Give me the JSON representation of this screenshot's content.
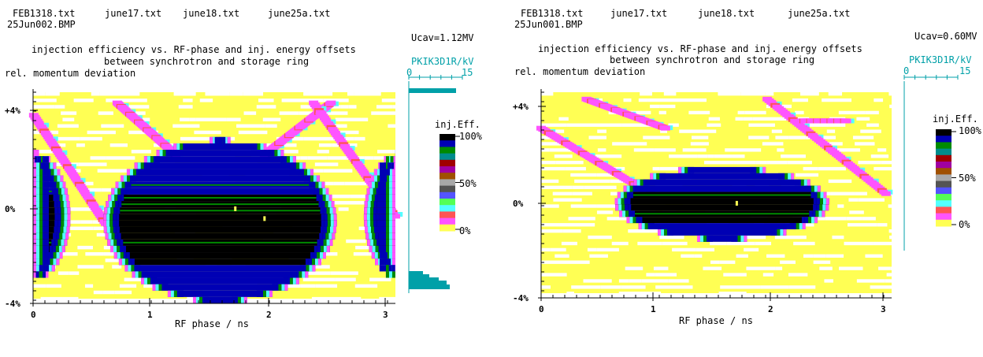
{
  "panels": [
    {
      "files": [
        "FEB1318.txt",
        "june17.txt",
        "june18.txt",
        "june25a.txt"
      ],
      "bmp_name": "25Jun002.BMP",
      "ucav": "Ucav=1.12MV",
      "title_line1": "injection efficiency vs. RF-phase and inj. energy offsets",
      "title_line2": "between synchrotron and storage ring",
      "ylabel": "rel. momentum deviation",
      "xlabel": "RF phase / ns",
      "pkik_label": "PKIK3D1R/kV",
      "pkik_ticks": [
        "0",
        "15"
      ],
      "legend_title": "inj.Eff.",
      "legend_labels": [
        "100%",
        "50%",
        "0%"
      ]
    },
    {
      "files": [
        "FEB1318.txt",
        "june17.txt",
        "june18.txt",
        "june25a.txt"
      ],
      "bmp_name": "25Jun001.BMP",
      "ucav": "Ucav=0.60MV",
      "title_line1": "injection efficiency vs. RF-phase and inj. energy offsets",
      "title_line2": "between synchrotron and storage ring",
      "ylabel": "rel. momentum deviation",
      "xlabel": "RF phase / ns",
      "pkik_label": "PKIK3D1R/kV",
      "pkik_ticks": [
        "0",
        "15"
      ],
      "legend_title": "inj.Eff.",
      "legend_labels": [
        "100%",
        "50%",
        "0%"
      ]
    }
  ],
  "chart_data": [
    {
      "type": "heatmap",
      "title": "injection efficiency vs. RF-phase and inj. energy offsets between synchrotron and storage ring",
      "xlabel": "RF phase / ns",
      "ylabel": "rel. momentum deviation",
      "xlim": [
        0,
        3.1
      ],
      "ylim": [
        -4,
        4.5
      ],
      "x_ticks": [
        "0",
        "1",
        "2",
        "3"
      ],
      "y_ticks": [
        "+4%",
        "0%",
        "-4%"
      ],
      "ucav_MV": 1.12,
      "bucket": {
        "center_x": 1.6,
        "center_y": -0.5,
        "half_width": 1.0,
        "half_height": 3.3
      },
      "edge_bucket_half_width": 0.32,
      "colorbar": {
        "label": "inj.Eff.",
        "ticks": [
          "100%",
          "50%",
          "0%"
        ]
      },
      "colors": [
        "#000000",
        "#0000b4",
        "#008a00",
        "#008c8c",
        "#a00000",
        "#a000a0",
        "#a05000",
        "#a8a8a8",
        "#545454",
        "#5454ff",
        "#54ff54",
        "#54ffff",
        "#ff5454",
        "#ff54ff",
        "#ffff54"
      ]
    },
    {
      "type": "heatmap",
      "title": "injection efficiency vs. RF-phase and inj. energy offsets between synchrotron and storage ring",
      "xlabel": "RF phase / ns",
      "ylabel": "rel. momentum deviation",
      "xlim": [
        0,
        3.1
      ],
      "ylim": [
        -4,
        4.5
      ],
      "x_ticks": [
        "0",
        "1",
        "2",
        "3"
      ],
      "y_ticks": [
        "+4%",
        "0%",
        "-4%"
      ],
      "ucav_MV": 0.6,
      "bucket": {
        "center_x": 1.6,
        "center_y": 0.0,
        "half_width": 0.95,
        "half_height": 1.5
      },
      "edge_bucket_half_width": 0.0,
      "colorbar": {
        "label": "inj.Eff.",
        "ticks": [
          "100%",
          "50%",
          "0%"
        ]
      },
      "colors": [
        "#000000",
        "#0000b4",
        "#008a00",
        "#008c8c",
        "#a00000",
        "#a000a0",
        "#a05000",
        "#a8a8a8",
        "#545454",
        "#5454ff",
        "#54ff54",
        "#54ffff",
        "#ff5454",
        "#ff54ff",
        "#ffff54"
      ]
    }
  ]
}
